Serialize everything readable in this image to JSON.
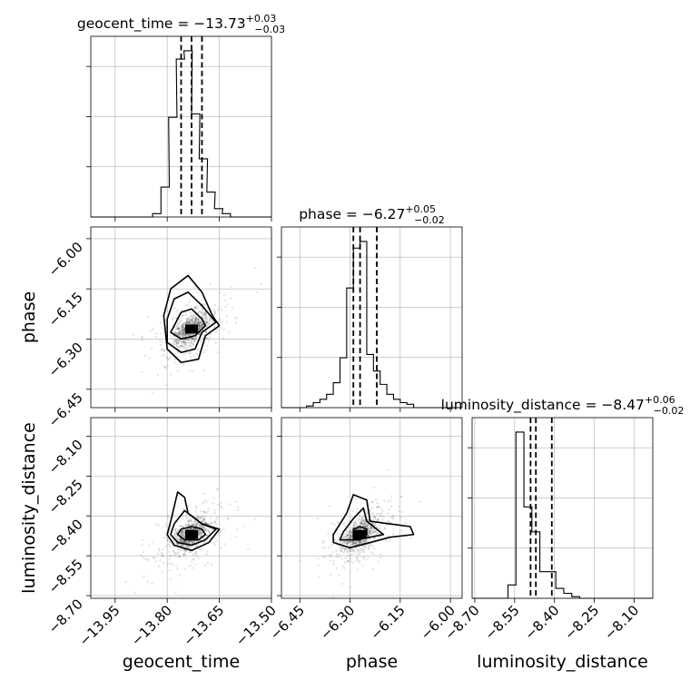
{
  "chart_data": {
    "type": "corner",
    "parameters": [
      "geocent_time",
      "phase",
      "luminosity_distance"
    ],
    "axes": {
      "geocent_time": {
        "label": "geocent_time",
        "range": [
          -14.02,
          -13.5
        ],
        "ticks": [
          -13.95,
          -13.8,
          -13.65,
          -13.5
        ],
        "tick_labels": [
          "−13.95",
          "−13.80",
          "−13.65",
          "−13.50"
        ]
      },
      "phase": {
        "label": "phase",
        "range": [
          -6.505,
          -5.965
        ],
        "ticks": [
          -6.45,
          -6.3,
          -6.15,
          -6.0
        ],
        "tick_labels": [
          "−6.45",
          "−6.30",
          "−6.15",
          "−6.00"
        ]
      },
      "luminosity_distance": {
        "label": "luminosity_distance",
        "range": [
          -8.71,
          -8.03
        ],
        "ticks": [
          -8.7,
          -8.55,
          -8.4,
          -8.25,
          -8.1
        ],
        "tick_labels": [
          "−8.70",
          "−8.55",
          "−8.40",
          "−8.25",
          "−8.10"
        ]
      }
    },
    "marginals": [
      {
        "param": "geocent_time",
        "title_prefix": "geocent_time = −13.73",
        "title_plus": "+0.03",
        "title_minus": "−0.03",
        "quantiles": [
          -13.76,
          -13.73,
          -13.7
        ],
        "bins": [
          [
            -13.83,
            0.02
          ],
          [
            -13.806,
            0.18
          ],
          [
            -13.784,
            0.6
          ],
          [
            -13.762,
            0.95
          ],
          [
            -13.74,
            1.0
          ],
          [
            -13.718,
            0.62
          ],
          [
            -13.696,
            0.35
          ],
          [
            -13.674,
            0.15
          ],
          [
            -13.652,
            0.05
          ],
          [
            -13.63,
            0.02
          ]
        ]
      },
      {
        "param": "phase",
        "title_prefix": "phase = −6.27",
        "title_plus": "+0.05",
        "title_minus": "−0.02",
        "quantiles": [
          -6.29,
          -6.27,
          -6.22
        ],
        "bins": [
          [
            -6.42,
            0.01
          ],
          [
            -6.4,
            0.03
          ],
          [
            -6.38,
            0.05
          ],
          [
            -6.36,
            0.08
          ],
          [
            -6.34,
            0.15
          ],
          [
            -6.32,
            0.3
          ],
          [
            -6.3,
            0.72
          ],
          [
            -6.28,
            0.96
          ],
          [
            -6.26,
            1.0
          ],
          [
            -6.24,
            0.32
          ],
          [
            -6.22,
            0.22
          ],
          [
            -6.2,
            0.14
          ],
          [
            -6.18,
            0.08
          ],
          [
            -6.16,
            0.05
          ],
          [
            -6.14,
            0.03
          ],
          [
            -6.12,
            0.02
          ]
        ]
      },
      {
        "param": "luminosity_distance",
        "title_prefix": "luminosity_distance = −8.47",
        "title_plus": "+0.06",
        "title_minus": "−0.02",
        "quantiles": [
          -8.49,
          -8.47,
          -8.41
        ],
        "bins": [
          [
            -8.56,
            0.08
          ],
          [
            -8.53,
            1.0
          ],
          [
            -8.5,
            0.55
          ],
          [
            -8.47,
            0.4
          ],
          [
            -8.44,
            0.16
          ],
          [
            -8.41,
            0.16
          ],
          [
            -8.38,
            0.06
          ],
          [
            -8.35,
            0.03
          ],
          [
            -8.32,
            0.01
          ]
        ]
      }
    ],
    "joint_panels": [
      {
        "x": "geocent_time",
        "y": "phase",
        "center": [
          -13.73,
          -6.27
        ],
        "contours": [
          [
            [
              -13.78,
              -6.26
            ],
            [
              -13.76,
              -6.22
            ],
            [
              -13.73,
              -6.21
            ],
            [
              -13.7,
              -6.24
            ],
            [
              -13.69,
              -6.26
            ],
            [
              -13.72,
              -6.29
            ],
            [
              -13.76,
              -6.3
            ],
            [
              -13.79,
              -6.28
            ]
          ],
          [
            [
              -13.8,
              -6.24
            ],
            [
              -13.78,
              -6.18
            ],
            [
              -13.74,
              -6.16
            ],
            [
              -13.7,
              -6.2
            ],
            [
              -13.66,
              -6.25
            ],
            [
              -13.7,
              -6.28
            ],
            [
              -13.72,
              -6.33
            ],
            [
              -13.76,
              -6.34
            ],
            [
              -13.8,
              -6.31
            ]
          ],
          [
            [
              -13.81,
              -6.23
            ],
            [
              -13.79,
              -6.15
            ],
            [
              -13.74,
              -6.11
            ],
            [
              -13.7,
              -6.16
            ],
            [
              -13.67,
              -6.23
            ],
            [
              -13.65,
              -6.26
            ],
            [
              -13.69,
              -6.29
            ],
            [
              -13.71,
              -6.36
            ],
            [
              -13.76,
              -6.37
            ],
            [
              -13.8,
              -6.33
            ]
          ]
        ]
      },
      {
        "x": "geocent_time",
        "y": "luminosity_distance",
        "center": [
          -13.73,
          -8.47
        ],
        "contours": [
          [
            [
              -13.76,
              -8.45
            ],
            [
              -13.73,
              -8.44
            ],
            [
              -13.7,
              -8.45
            ],
            [
              -13.69,
              -8.47
            ],
            [
              -13.71,
              -8.49
            ],
            [
              -13.75,
              -8.49
            ],
            [
              -13.77,
              -8.47
            ]
          ],
          [
            [
              -13.78,
              -8.43
            ],
            [
              -13.75,
              -8.38
            ],
            [
              -13.73,
              -8.4
            ],
            [
              -13.7,
              -8.43
            ],
            [
              -13.66,
              -8.45
            ],
            [
              -13.69,
              -8.49
            ],
            [
              -13.73,
              -8.51
            ],
            [
              -13.77,
              -8.5
            ],
            [
              -13.79,
              -8.47
            ]
          ],
          [
            [
              -13.79,
              -8.42
            ],
            [
              -13.77,
              -8.31
            ],
            [
              -13.75,
              -8.33
            ],
            [
              -13.74,
              -8.39
            ],
            [
              -13.7,
              -8.43
            ],
            [
              -13.65,
              -8.45
            ],
            [
              -13.68,
              -8.5
            ],
            [
              -13.73,
              -8.53
            ],
            [
              -13.78,
              -8.51
            ],
            [
              -13.8,
              -8.47
            ]
          ]
        ]
      },
      {
        "x": "phase",
        "y": "luminosity_distance",
        "center": [
          -6.27,
          -8.47
        ],
        "contours": [
          [
            [
              -6.29,
              -8.45
            ],
            [
              -6.27,
              -8.44
            ],
            [
              -6.25,
              -8.45
            ],
            [
              -6.25,
              -8.47
            ],
            [
              -6.27,
              -8.49
            ],
            [
              -6.29,
              -8.49
            ]
          ],
          [
            [
              -6.32,
              -8.46
            ],
            [
              -6.29,
              -8.41
            ],
            [
              -6.26,
              -8.37
            ],
            [
              -6.25,
              -8.42
            ],
            [
              -6.22,
              -8.45
            ],
            [
              -6.2,
              -8.47
            ],
            [
              -6.24,
              -8.48
            ],
            [
              -6.29,
              -8.49
            ],
            [
              -6.33,
              -8.49
            ]
          ],
          [
            [
              -6.35,
              -8.47
            ],
            [
              -6.31,
              -8.39
            ],
            [
              -6.29,
              -8.32
            ],
            [
              -6.25,
              -8.34
            ],
            [
              -6.24,
              -8.42
            ],
            [
              -6.18,
              -8.43
            ],
            [
              -6.12,
              -8.44
            ],
            [
              -6.11,
              -8.47
            ],
            [
              -6.18,
              -8.48
            ],
            [
              -6.24,
              -8.5
            ],
            [
              -6.3,
              -8.52
            ],
            [
              -6.35,
              -8.5
            ]
          ]
        ]
      }
    ],
    "grid": true,
    "colors": {
      "line": "#000000",
      "grid": "#b0b0b0",
      "points": "#000000"
    }
  }
}
